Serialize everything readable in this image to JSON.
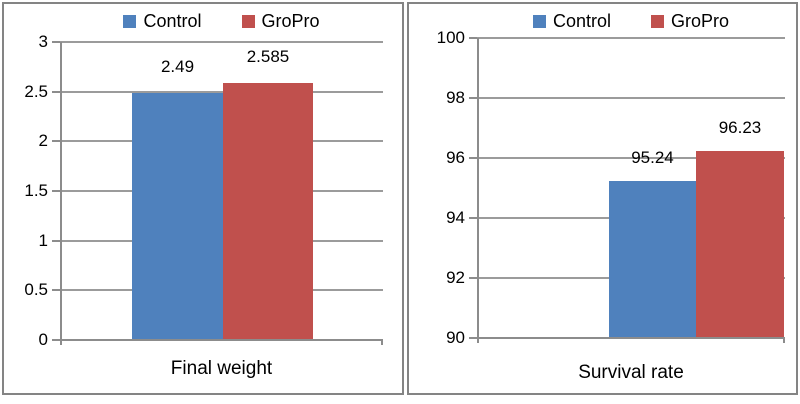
{
  "chart_data": [
    {
      "type": "bar",
      "xlabel": "Final weight",
      "categories": [
        "Control",
        "GroPro"
      ],
      "values": [
        2.49,
        2.585
      ],
      "data_labels": [
        "2.49",
        "2.585"
      ],
      "series_colors": [
        "#4f81bd",
        "#c0504d"
      ],
      "legend": [
        "Control",
        "GroPro"
      ],
      "legend_position": "top",
      "ylim": [
        0,
        3
      ],
      "ytick_step": 0.5,
      "ytick_labels": [
        "3",
        "2.5",
        "2",
        "1.5",
        "1",
        "0.5",
        "0"
      ],
      "grid": true
    },
    {
      "type": "bar",
      "xlabel": "Survival rate",
      "categories": [
        "Control",
        "GroPro"
      ],
      "values": [
        95.24,
        96.23
      ],
      "data_labels": [
        "95.24",
        "96.23"
      ],
      "series_colors": [
        "#4f81bd",
        "#c0504d"
      ],
      "legend": [
        "Control",
        "GroPro"
      ],
      "legend_position": "top",
      "ylim": [
        90,
        100
      ],
      "ytick_step": 2,
      "ytick_labels": [
        "100",
        "98",
        "96",
        "94",
        "92",
        "90"
      ],
      "grid": true
    }
  ],
  "colors": {
    "control_blue": "#4f81bd",
    "gropro_red": "#c0504d",
    "gridline": "#9b9b9b",
    "axis": "#8c8c8c",
    "panel_border": "#848484",
    "text": "#000000",
    "background": "#ffffff"
  }
}
